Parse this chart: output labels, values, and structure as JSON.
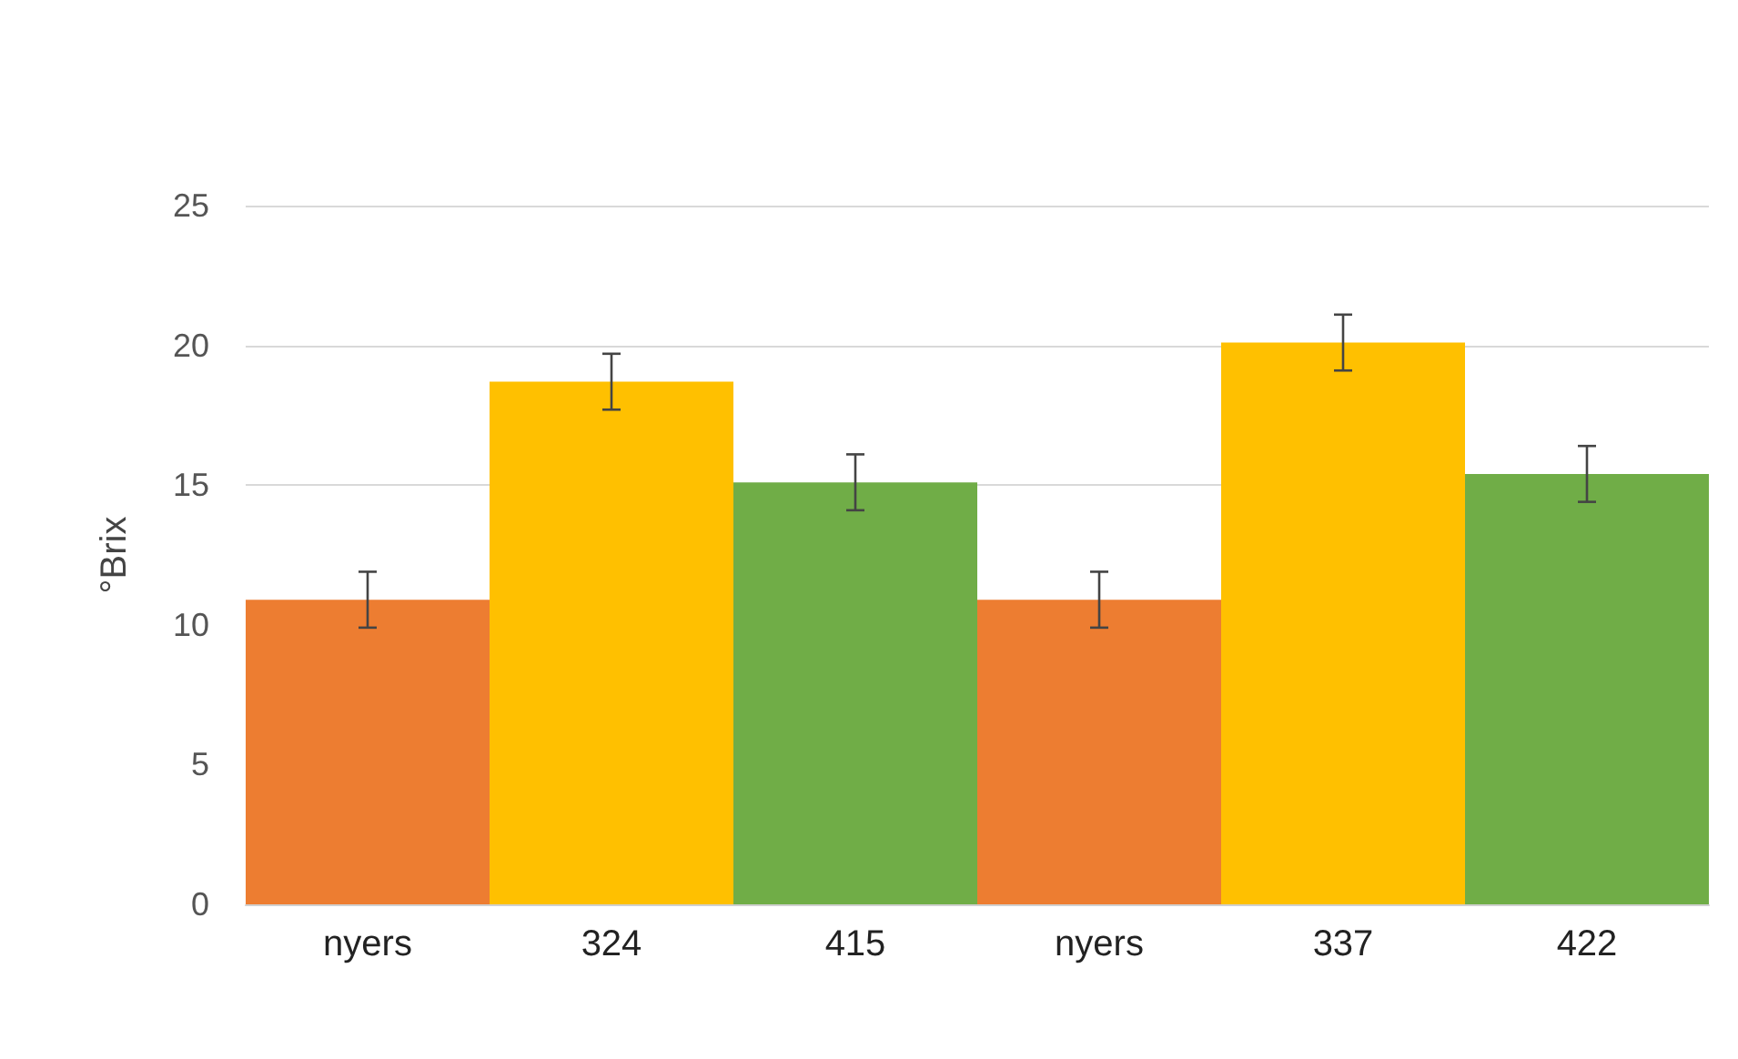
{
  "chart_data": {
    "type": "bar",
    "ylabel": "°Brix",
    "categories": [
      "nyers",
      "324",
      "415",
      "nyers",
      "337",
      "422"
    ],
    "values": [
      10.9,
      18.7,
      15.1,
      10.9,
      20.1,
      15.4
    ],
    "colors": [
      "#ed7d31",
      "#ffc000",
      "#70ad47",
      "#ed7d31",
      "#ffc000",
      "#70ad47"
    ],
    "errors": [
      1.0,
      1.0,
      1.0,
      1.0,
      1.0,
      1.0
    ],
    "ylim": [
      0,
      25
    ],
    "yticks": [
      0,
      5,
      10,
      15,
      20,
      25
    ],
    "grid": "y"
  }
}
